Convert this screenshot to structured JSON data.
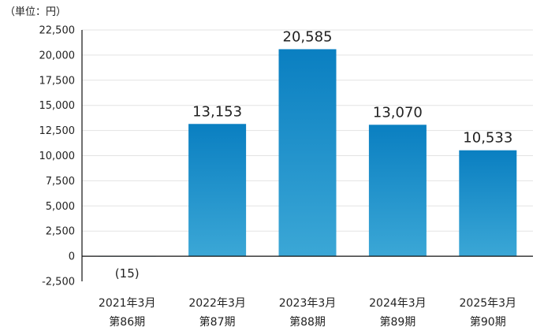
{
  "unit_label": "（単位：円）",
  "chart_data": {
    "type": "bar",
    "title": "",
    "xlabel": "",
    "ylabel": "",
    "unit": "円",
    "categories": [
      [
        "2021年3月",
        "第86期"
      ],
      [
        "2022年3月",
        "第87期"
      ],
      [
        "2023年3月",
        "第88期"
      ],
      [
        "2024年3月",
        "第89期"
      ],
      [
        "2025年3月",
        "第90期"
      ]
    ],
    "values": [
      -15,
      13153,
      20585,
      13070,
      10533
    ],
    "data_labels": [
      "(15)",
      "13,153",
      "20,585",
      "13,070",
      "10,533"
    ],
    "ylim": [
      -2500,
      22500
    ],
    "yticks": [
      -2500,
      0,
      2500,
      5000,
      7500,
      10000,
      12500,
      15000,
      17500,
      20000,
      22500
    ],
    "ytick_labels": [
      "-2,500",
      "0",
      "2,500",
      "5,000",
      "7,500",
      "10,000",
      "12,500",
      "15,000",
      "17,500",
      "20,000",
      "22,500"
    ],
    "grid": true,
    "colors": {
      "bar_top": "#0a7fc1",
      "bar_bottom": "#3ba7d6",
      "grid": "#e3e3e3",
      "axis": "#111111"
    }
  }
}
